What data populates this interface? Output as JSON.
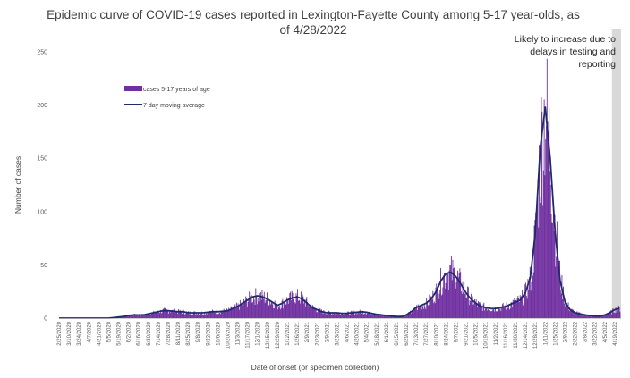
{
  "chart_data": {
    "type": "bar",
    "title_lines": [
      "Epidemic curve of COVID-19 cases reported in Lexington-Fayette County among 5-17 year-olds, as",
      "of 4/28/2022"
    ],
    "xlabel": "Date of onset (or specimen collection)",
    "ylabel": "Number of cases",
    "ylim": [
      0,
      250
    ],
    "yticks": [
      "0",
      "50",
      "100",
      "150",
      "200",
      "250"
    ],
    "x_tick_labels": [
      "2/25/2020",
      "3/10/2020",
      "3/24/2020",
      "4/7/2020",
      "4/21/2020",
      "5/5/2020",
      "5/19/2020",
      "6/2/2020",
      "6/16/2020",
      "6/30/2020",
      "7/14/2020",
      "7/28/2020",
      "8/11/2020",
      "8/25/2020",
      "9/8/2020",
      "9/22/2020",
      "10/6/2020",
      "10/20/2020",
      "11/3/2020",
      "11/17/2020",
      "12/1/2020",
      "12/15/2020",
      "12/29/2020",
      "1/12/2021",
      "1/26/2021",
      "2/9/2021",
      "2/23/2021",
      "3/9/2021",
      "3/23/2021",
      "4/6/2021",
      "4/20/2021",
      "5/4/2021",
      "5/18/2021",
      "6/1/2021",
      "6/15/2021",
      "6/29/2021",
      "7/13/2021",
      "7/27/2021",
      "8/10/2021",
      "8/24/2021",
      "9/7/2021",
      "9/21/2021",
      "10/5/2021",
      "10/19/2021",
      "11/2/2021",
      "11/16/2021",
      "11/30/2021",
      "12/14/2021",
      "12/28/2021",
      "1/11/2022",
      "1/25/2022",
      "2/8/2022",
      "2/22/2022",
      "3/8/2022",
      "3/22/2022",
      "4/5/2022",
      "4/19/2022"
    ],
    "series": [
      {
        "name": "cases 5-17 years of age",
        "kind": "bar",
        "color": "#7030a0"
      },
      {
        "name": "7 day moving average",
        "kind": "line",
        "color": "#1f2a6b"
      }
    ],
    "weekly_dates": [
      "2/25/2020",
      "3/3/2020",
      "3/10/2020",
      "3/17/2020",
      "3/24/2020",
      "3/31/2020",
      "4/7/2020",
      "4/14/2020",
      "4/21/2020",
      "4/28/2020",
      "5/5/2020",
      "5/12/2020",
      "5/19/2020",
      "5/26/2020",
      "6/2/2020",
      "6/9/2020",
      "6/16/2020",
      "6/23/2020",
      "6/30/2020",
      "7/7/2020",
      "7/14/2020",
      "7/21/2020",
      "7/28/2020",
      "8/4/2020",
      "8/11/2020",
      "8/18/2020",
      "8/25/2020",
      "9/1/2020",
      "9/8/2020",
      "9/15/2020",
      "9/22/2020",
      "9/29/2020",
      "10/6/2020",
      "10/13/2020",
      "10/20/2020",
      "10/27/2020",
      "11/3/2020",
      "11/10/2020",
      "11/17/2020",
      "11/24/2020",
      "12/1/2020",
      "12/8/2020",
      "12/15/2020",
      "12/22/2020",
      "12/29/2020",
      "1/5/2021",
      "1/12/2021",
      "1/19/2021",
      "1/26/2021",
      "2/2/2021",
      "2/9/2021",
      "2/16/2021",
      "2/23/2021",
      "3/2/2021",
      "3/9/2021",
      "3/16/2021",
      "3/23/2021",
      "3/30/2021",
      "4/6/2021",
      "4/13/2021",
      "4/20/2021",
      "4/27/2021",
      "5/4/2021",
      "5/11/2021",
      "5/18/2021",
      "5/25/2021",
      "6/1/2021",
      "6/8/2021",
      "6/15/2021",
      "6/22/2021",
      "6/29/2021",
      "7/6/2021",
      "7/13/2021",
      "7/20/2021",
      "7/27/2021",
      "8/3/2021",
      "8/10/2021",
      "8/17/2021",
      "8/24/2021",
      "8/31/2021",
      "9/7/2021",
      "9/14/2021",
      "9/21/2021",
      "9/28/2021",
      "10/5/2021",
      "10/12/2021",
      "10/19/2021",
      "10/26/2021",
      "11/2/2021",
      "11/9/2021",
      "11/16/2021",
      "11/23/2021",
      "11/30/2021",
      "12/7/2021",
      "12/14/2021",
      "12/21/2021",
      "12/28/2021",
      "1/4/2022",
      "1/11/2022",
      "1/18/2022",
      "1/25/2022",
      "2/1/2022",
      "2/8/2022",
      "2/15/2022",
      "2/22/2022",
      "3/1/2022",
      "3/8/2022",
      "3/15/2022",
      "3/22/2022",
      "3/29/2022",
      "4/5/2022",
      "4/12/2022",
      "4/19/2022",
      "4/26/2022"
    ],
    "moving_average_weekly": [
      0,
      0,
      0,
      0,
      0,
      0,
      0,
      0,
      0,
      0,
      0,
      0.5,
      1,
      1.5,
      2.5,
      3,
      3,
      3,
      4,
      5,
      6,
      7,
      7,
      6.5,
      6,
      6,
      5,
      5,
      5,
      5,
      5.5,
      6,
      6,
      6.5,
      7,
      9,
      11,
      14,
      17,
      20,
      21,
      20,
      18,
      15,
      12,
      14,
      17,
      19,
      20,
      18,
      14,
      10,
      8,
      6,
      5,
      5,
      5,
      4.5,
      4.5,
      5,
      5.5,
      6,
      5.5,
      4.5,
      3.5,
      3,
      2.5,
      2,
      1.5,
      1.5,
      3,
      6,
      10,
      12,
      14,
      18,
      25,
      35,
      42,
      43,
      39,
      32,
      24,
      18,
      14,
      11,
      10,
      9,
      9,
      10,
      11,
      13,
      15,
      17,
      24,
      38,
      80,
      160,
      198,
      150,
      80,
      35,
      15,
      8,
      5,
      4,
      3,
      2.5,
      2,
      2,
      3,
      5,
      8,
      9
    ],
    "annotation": {
      "text_lines": [
        "Likely to increase due to",
        "delays in testing and",
        "reporting"
      ],
      "shaded_start": "4/15/2022",
      "shaded_end": "4/28/2022"
    },
    "legend_position": "top-left",
    "grid": false
  }
}
